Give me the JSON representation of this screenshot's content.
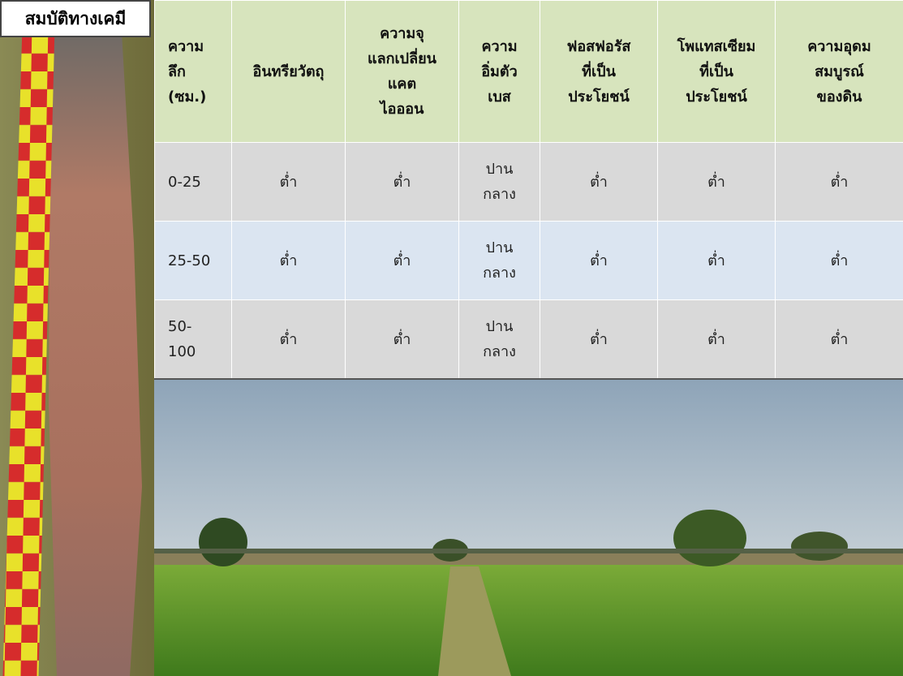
{
  "label": "สมบัติทางเคมี",
  "table": {
    "header": [
      "ความ\nลึก\n(ซม.)",
      "อินทรียวัตถุ",
      "ความจุ\nแลกเปลี่ยน\nแคต\nไอออน",
      "ความ\nอิ่มตัว\nเบส",
      "ฟอสฟอรัส\nที่เป็น\nประโยชน์",
      "โพแทสเซียม\nที่เป็น\nประโยชน์",
      "ความอุดม\nสมบูรณ์\nของดิน"
    ],
    "rows": [
      [
        "0-25",
        "ต่ำ",
        "ต่ำ",
        "ปาน\nกลาง",
        "ต่ำ",
        "ต่ำ",
        "ต่ำ"
      ],
      [
        "25-50",
        "ต่ำ",
        "ต่ำ",
        "ปาน\nกลาง",
        "ต่ำ",
        "ต่ำ",
        "ต่ำ"
      ],
      [
        "50-\n100",
        "ต่ำ",
        "ต่ำ",
        "ปาน\nกลาง",
        "ต่ำ",
        "ต่ำ",
        "ต่ำ"
      ]
    ]
  }
}
